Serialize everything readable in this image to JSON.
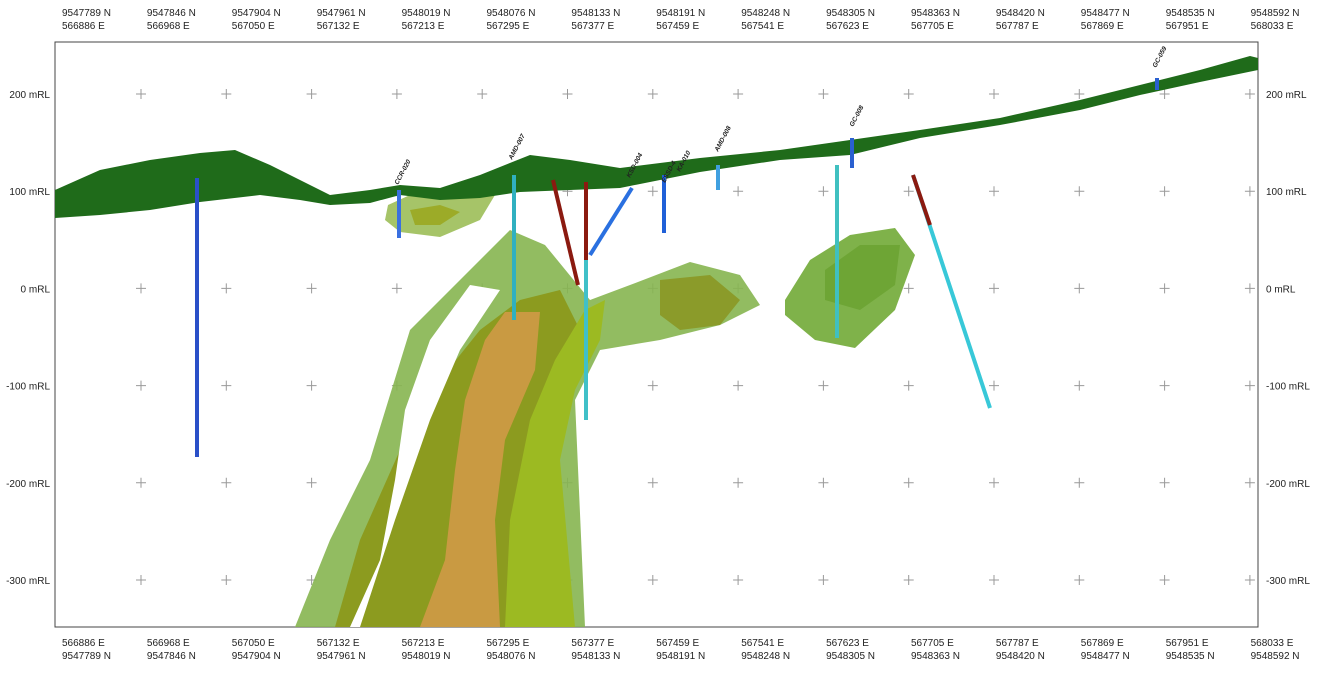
{
  "top_labels": [
    [
      "9547789 N",
      "566886 E"
    ],
    [
      "9547846 N",
      "566968 E"
    ],
    [
      "9547904 N",
      "567050 E"
    ],
    [
      "9547961 N",
      "567132 E"
    ],
    [
      "9548019 N",
      "567213 E"
    ],
    [
      "9548076 N",
      "567295 E"
    ],
    [
      "9548133 N",
      "567377 E"
    ],
    [
      "9548191 N",
      "567459 E"
    ],
    [
      "9548248 N",
      "567541 E"
    ],
    [
      "9548305 N",
      "567623 E"
    ],
    [
      "9548363 N",
      "567705 E"
    ],
    [
      "9548420 N",
      "567787 E"
    ],
    [
      "9548477 N",
      "567869 E"
    ],
    [
      "9548535 N",
      "567951 E"
    ],
    [
      "9548592 N",
      "568033 E"
    ]
  ],
  "bottom_labels": [
    [
      "566886 E",
      "9547789 N"
    ],
    [
      "566968 E",
      "9547846 N"
    ],
    [
      "567050 E",
      "9547904 N"
    ],
    [
      "567132 E",
      "9547961 N"
    ],
    [
      "567213 E",
      "9548019 N"
    ],
    [
      "567295 E",
      "9548076 N"
    ],
    [
      "567377 E",
      "9548133 N"
    ],
    [
      "567459 E",
      "9548191 N"
    ],
    [
      "567541 E",
      "9548248 N"
    ],
    [
      "567623 E",
      "9548305 N"
    ],
    [
      "567705 E",
      "9548363 N"
    ],
    [
      "567787 E",
      "9548420 N"
    ],
    [
      "567869 E",
      "9548477 N"
    ],
    [
      "567951 E",
      "9548535 N"
    ],
    [
      "568033 E",
      "9548592 N"
    ]
  ],
  "left_axis": [
    "200 mRL",
    "100 mRL",
    "0 mRL",
    "-100 mRL",
    "-200 mRL",
    "-300 mRL"
  ],
  "right_axis": [
    "200 mRL",
    "100 mRL",
    "0 mRL",
    "-100 mRL",
    "-200 mRL",
    "-300 mRL"
  ],
  "hole_labels": [
    "CCR-020",
    "AMD-007",
    "KSD-004",
    "ESSD-4",
    "KA-010",
    "AMD-008",
    "GC-008",
    "GC-059"
  ]
}
